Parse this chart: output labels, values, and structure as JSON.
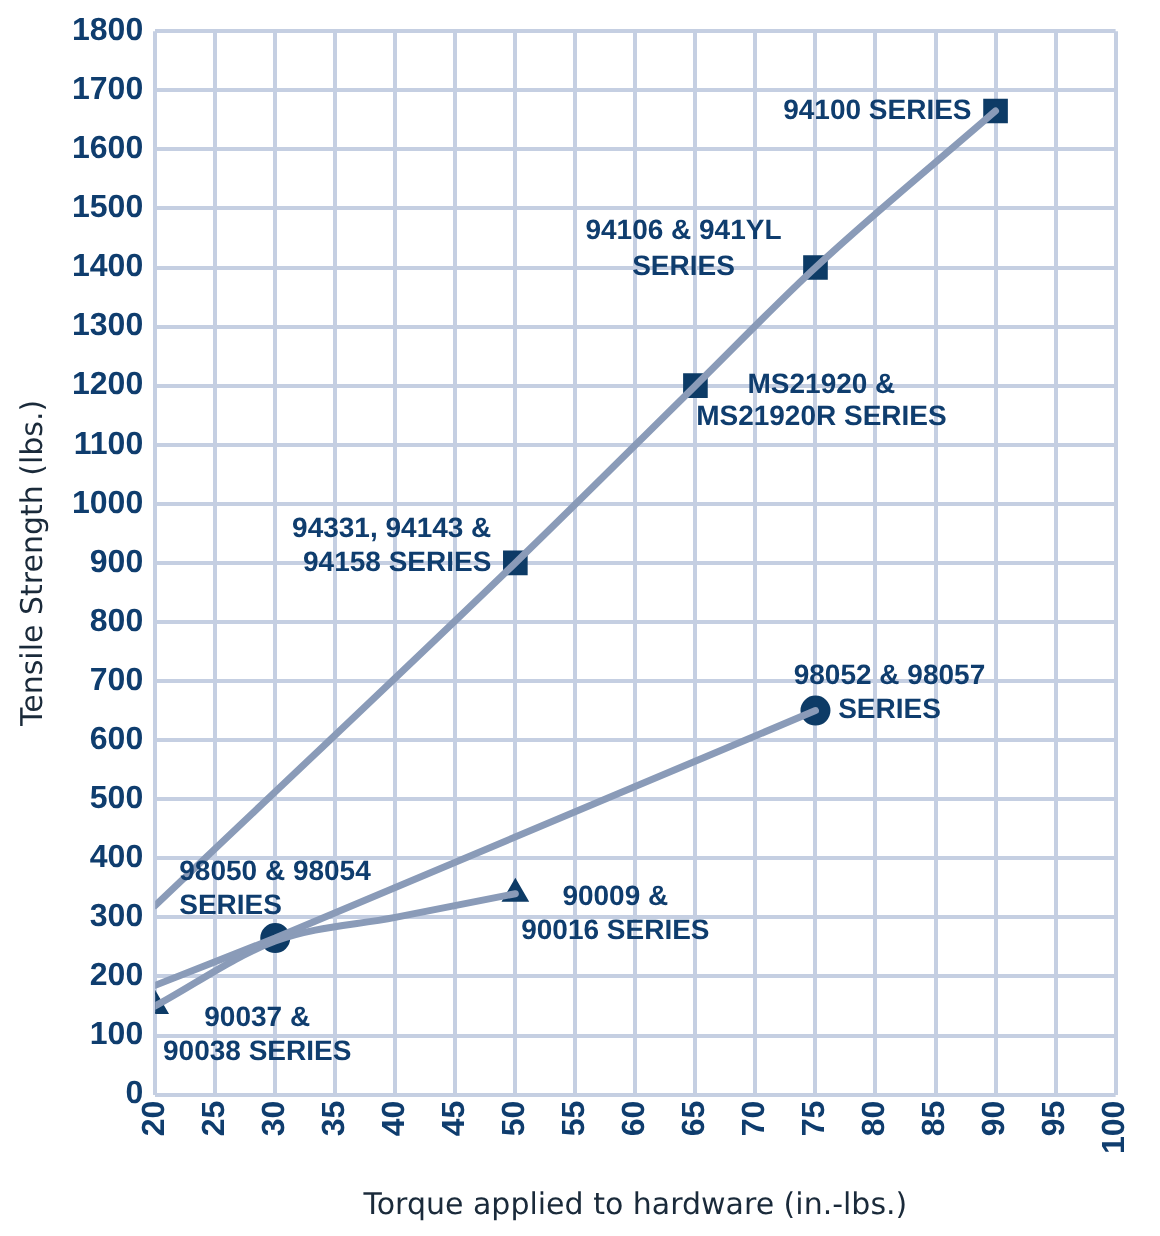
{
  "chart_data": {
    "type": "line",
    "xlabel": "Torque applied to hardware (in.-lbs.)",
    "ylabel": "Tensile Strength (lbs.)",
    "xlim": [
      20,
      100
    ],
    "xticks": [
      20,
      25,
      30,
      35,
      40,
      45,
      50,
      55,
      60,
      65,
      70,
      75,
      80,
      85,
      90,
      95,
      100
    ],
    "ylim": [
      0,
      1800
    ],
    "yticks": [
      0,
      100,
      200,
      300,
      400,
      500,
      600,
      700,
      800,
      900,
      1000,
      1100,
      1200,
      1300,
      1400,
      1500,
      1600,
      1700,
      1800
    ],
    "grid": true,
    "series": [
      {
        "marker": "none",
        "color": "#8a9bb8",
        "x": [
          20,
          50,
          65,
          75,
          90
        ],
        "values": [
          320,
          900,
          1200,
          1400,
          1665
        ]
      },
      {
        "marker": "none",
        "color": "#8a9bb8",
        "x": [
          20,
          30,
          75
        ],
        "values": [
          185,
          265,
          650
        ]
      },
      {
        "marker": "none",
        "color": "#8a9bb8",
        "x": [
          20,
          30,
          40,
          50
        ],
        "values": [
          150,
          260,
          300,
          340
        ]
      },
      {
        "type": "scatter",
        "marker": "square",
        "color": "#0d3b66",
        "x": [
          50,
          65,
          75,
          90
        ],
        "values": [
          900,
          1200,
          1400,
          1665
        ]
      },
      {
        "type": "scatter",
        "marker": "circle",
        "color": "#0d3b66",
        "x": [
          30,
          75
        ],
        "values": [
          265,
          650
        ]
      },
      {
        "type": "scatter",
        "marker": "triangle",
        "color": "#0d3b66",
        "x": [
          20,
          50
        ],
        "values": [
          150,
          340
        ]
      }
    ],
    "annotations": [
      {
        "text": "94100 SERIES",
        "x": 90,
        "y": 1665
      },
      {
        "text": "94106 & 941YL\nSERIES",
        "x": 75,
        "y": 1400
      },
      {
        "text": "MS21920 &\nMS21920R SERIES",
        "x": 65,
        "y": 1200
      },
      {
        "text": "94331, 94143 &\n94158 SERIES",
        "x": 50,
        "y": 900
      },
      {
        "text": "98052 & 98057\nSERIES",
        "x": 75,
        "y": 650
      },
      {
        "text": "98050 & 98054\nSERIES",
        "x": 30,
        "y": 265
      },
      {
        "text": "90009 &\n90016 SERIES",
        "x": 50,
        "y": 340
      },
      {
        "text": "90037 &\n90038 SERIES",
        "x": 20,
        "y": 150
      }
    ]
  }
}
